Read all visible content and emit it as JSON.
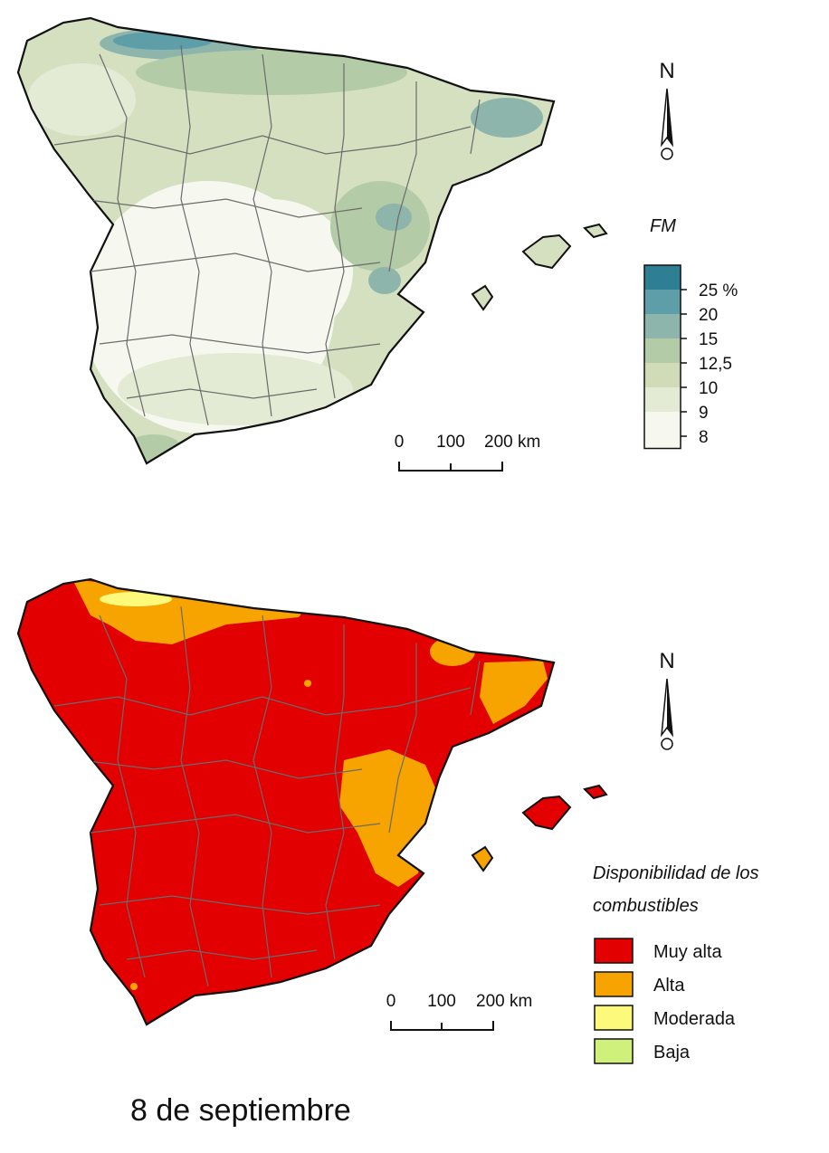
{
  "fm_map": {
    "legend_title": "FM",
    "classes": [
      {
        "label": "25 %",
        "color": "#2e7f94"
      },
      {
        "label": "20",
        "color": "#5e9ea9"
      },
      {
        "label": "15",
        "color": "#8db5ab"
      },
      {
        "label": "12,5",
        "color": "#b3cba6"
      },
      {
        "label": "10",
        "color": "#d0dcb8"
      },
      {
        "label": "9",
        "color": "#e4ebd5"
      },
      {
        "label": "8",
        "color": "#f6f8f0"
      }
    ],
    "scale": {
      "l0": "0",
      "l1": "100",
      "l2": "200 km"
    },
    "north": "N"
  },
  "disp_map": {
    "legend_title_1": "Disponibilidad de los",
    "legend_title_2": "combustibles",
    "classes": [
      {
        "label": "Muy alta",
        "color": "#e20000"
      },
      {
        "label": "Alta",
        "color": "#f7a400"
      },
      {
        "label": "Moderada",
        "color": "#fdf97a"
      },
      {
        "label": "Baja",
        "color": "#cff07a"
      }
    ],
    "scale": {
      "l0": "0",
      "l1": "100",
      "l2": "200 km"
    },
    "north": "N"
  },
  "date": "8 de septiembre"
}
